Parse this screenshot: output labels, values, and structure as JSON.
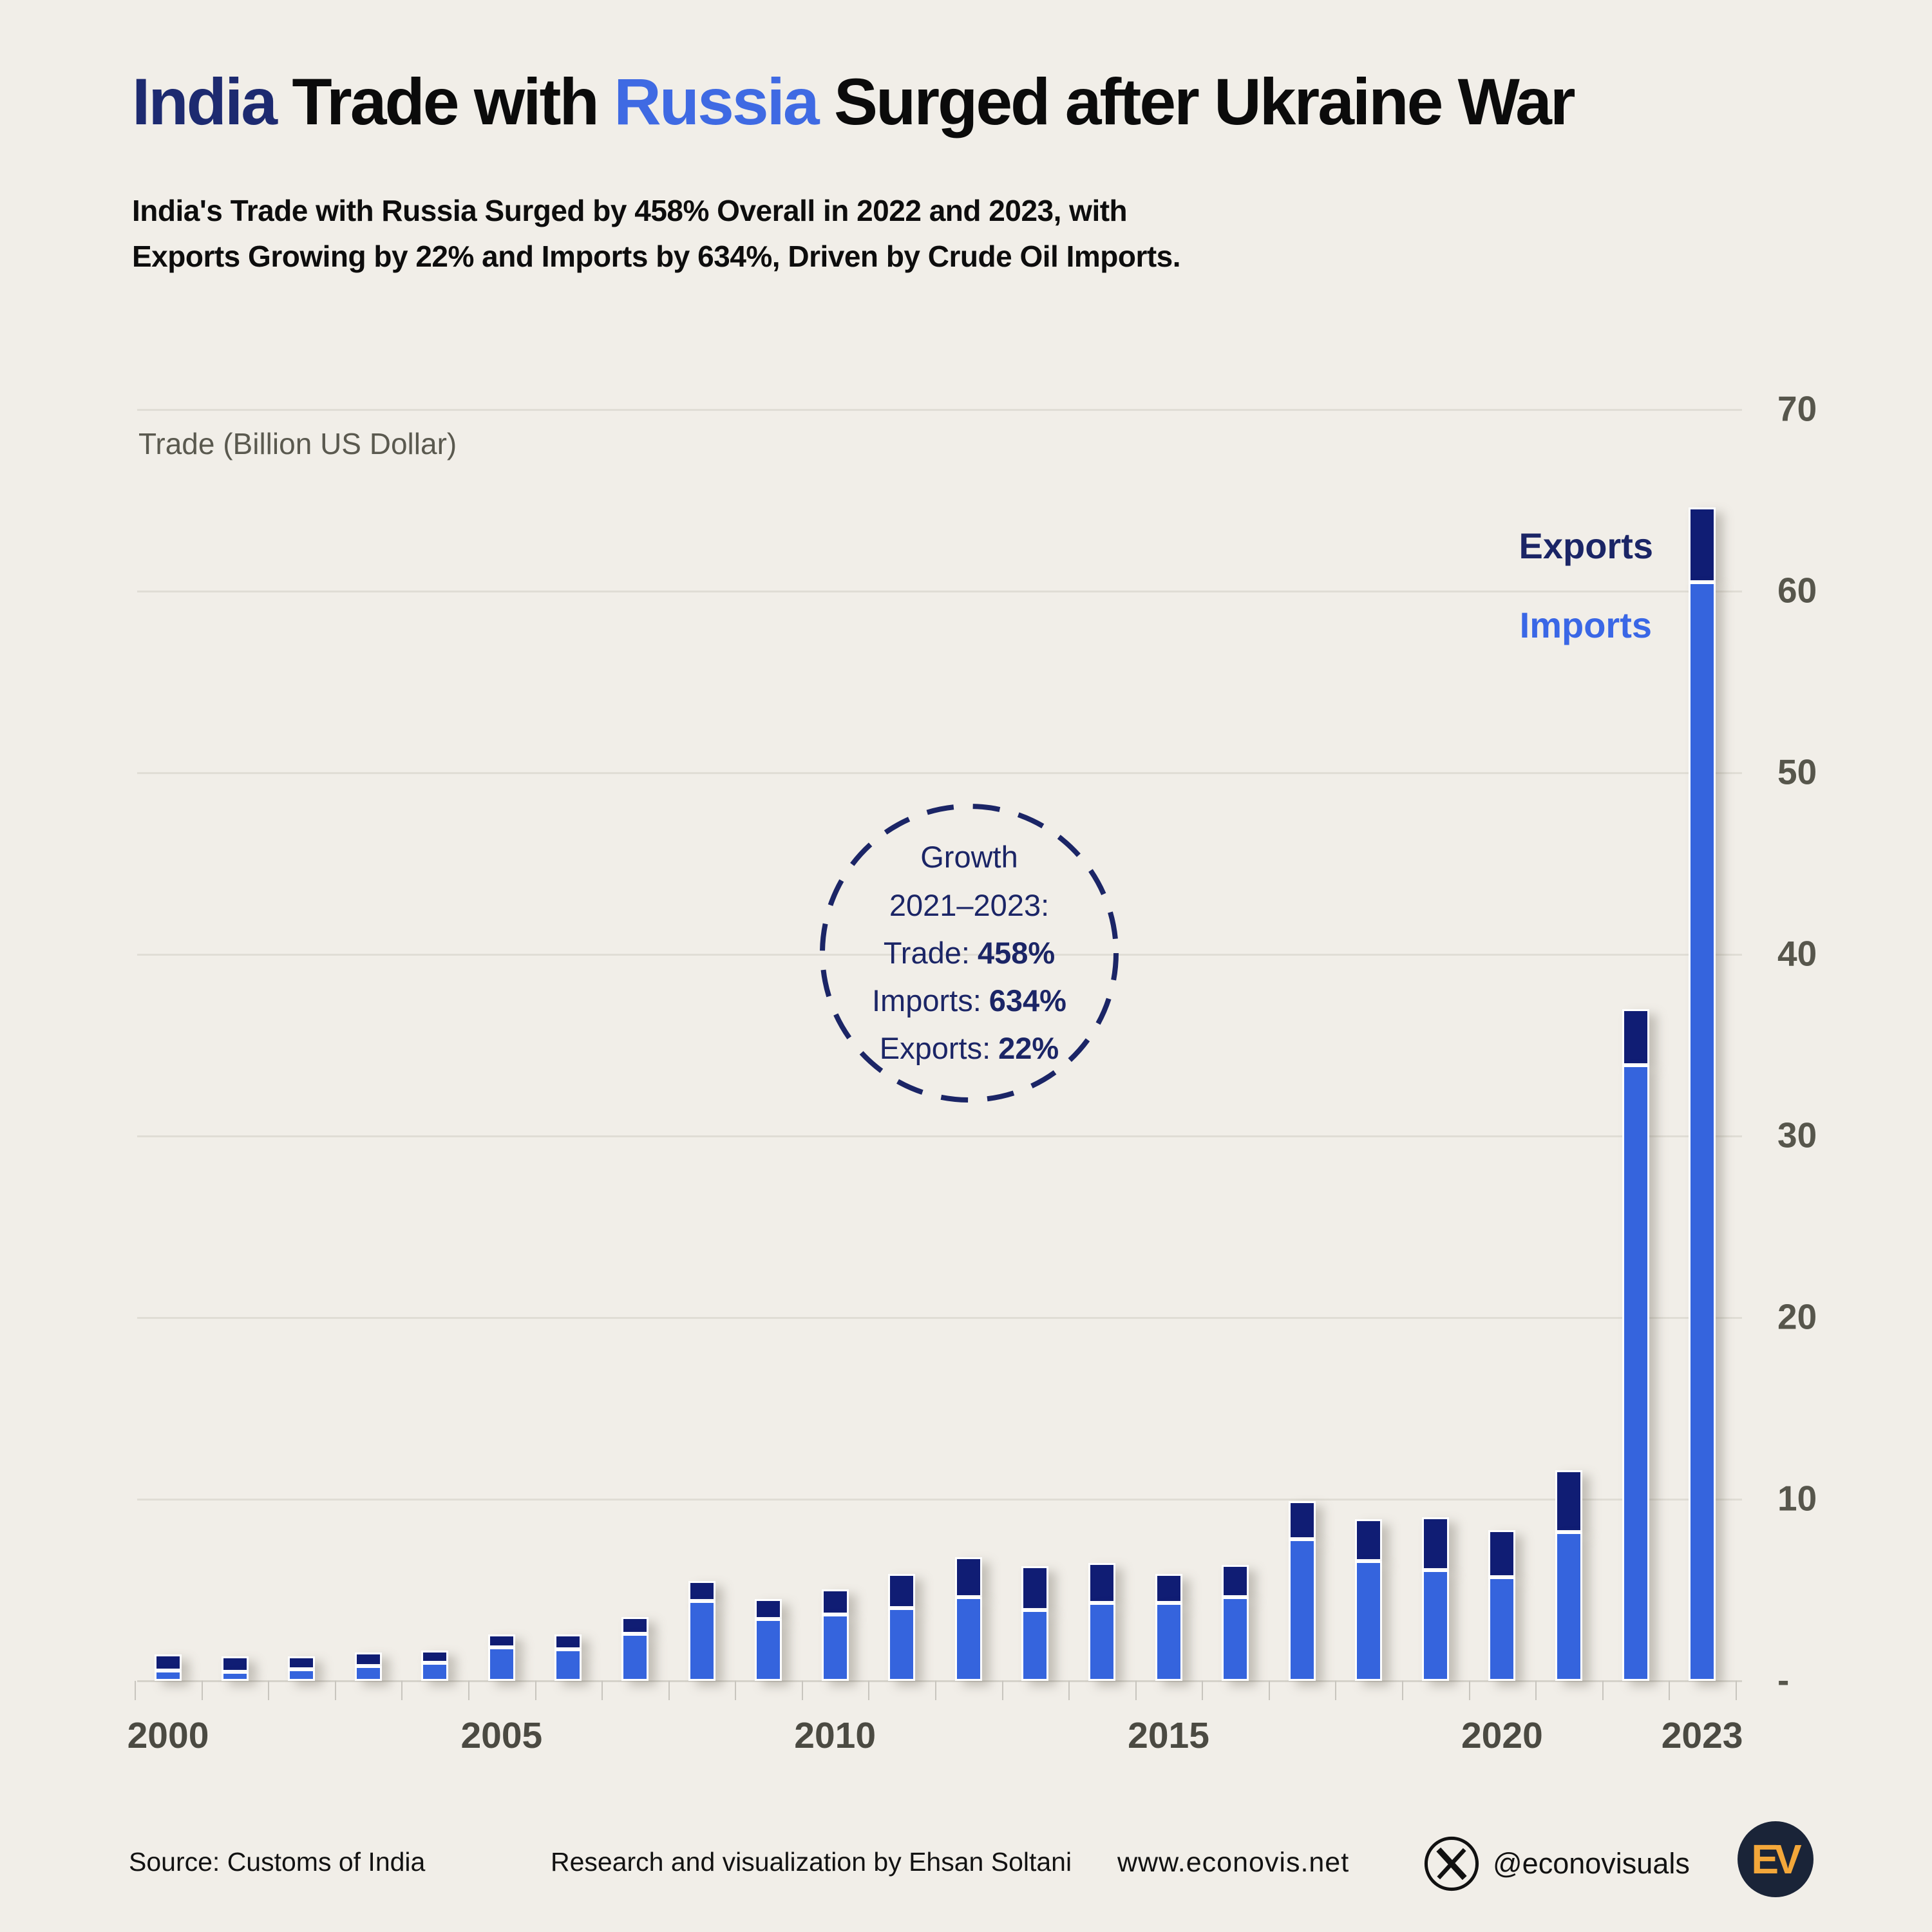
{
  "title": {
    "part1": "India",
    "part2": " Trade with ",
    "part3": "Russia",
    "part4": " Surged after Ukraine War"
  },
  "subtitle_lines": [
    "India's Trade with Russia Surged by 458% Overall in 2022 and 2023, with",
    "Exports Growing by 22% and Imports by 634%, Driven by Crude Oil Imports."
  ],
  "chart_data": {
    "type": "bar",
    "stacked": true,
    "axis_title": "Trade (Billion US Dollar)",
    "unit": "Billion US Dollar",
    "categories": [
      2000,
      2001,
      2002,
      2003,
      2004,
      2005,
      2006,
      2007,
      2008,
      2009,
      2010,
      2011,
      2012,
      2013,
      2014,
      2015,
      2016,
      2017,
      2018,
      2019,
      2020,
      2021,
      2022,
      2023
    ],
    "series": [
      {
        "name": "Imports",
        "color": "#3564dd",
        "values": [
          0.55,
          0.5,
          0.65,
          0.8,
          1.0,
          1.85,
          1.75,
          2.6,
          4.4,
          3.4,
          3.65,
          4.0,
          4.6,
          3.9,
          4.3,
          4.3,
          4.6,
          7.8,
          6.6,
          6.1,
          5.7,
          8.2,
          33.9,
          60.5
        ]
      },
      {
        "name": "Exports",
        "color": "#101d74",
        "values": [
          0.9,
          0.85,
          0.7,
          0.75,
          0.65,
          0.7,
          0.8,
          0.9,
          1.1,
          1.1,
          1.4,
          1.9,
          2.2,
          2.4,
          2.2,
          1.6,
          1.8,
          2.1,
          2.3,
          2.9,
          2.6,
          3.4,
          3.1,
          4.1
        ]
      }
    ],
    "ylim": [
      0,
      70
    ],
    "grid": "horizontal",
    "y_ticks": [
      {
        "value": 70,
        "label": "70"
      },
      {
        "value": 60,
        "label": "60"
      },
      {
        "value": 50,
        "label": "50"
      },
      {
        "value": 40,
        "label": "40"
      },
      {
        "value": 30,
        "label": "30"
      },
      {
        "value": 20,
        "label": "20"
      },
      {
        "value": 10,
        "label": "10"
      },
      {
        "value": 0,
        "label": "-"
      }
    ],
    "x_ticks": [
      {
        "value": 2000,
        "label": "2000"
      },
      {
        "value": 2005,
        "label": "2005"
      },
      {
        "value": 2010,
        "label": "2010"
      },
      {
        "value": 2015,
        "label": "2015"
      },
      {
        "value": 2020,
        "label": "2020"
      },
      {
        "value": 2023,
        "label": "2023"
      }
    ],
    "legend_position": "beside-last-bar"
  },
  "legend": {
    "exports": "Exports",
    "imports": "Imports"
  },
  "annotation": {
    "lines": [
      {
        "label": "Growth",
        "value": ""
      },
      {
        "label": "2021–2023:",
        "value": ""
      },
      {
        "label": "Trade:",
        "value": "458%"
      },
      {
        "label": "Imports:",
        "value": "634%"
      },
      {
        "label": "Exports:",
        "value": "22%"
      }
    ]
  },
  "footer": {
    "source": "Source: Customs of India",
    "credit": "Research and visualization by Ehsan Soltani",
    "website": "www.econovis.net",
    "social_handle": "@econovisuals",
    "logo_text": "EV"
  },
  "colors": {
    "background": "#f1eee8",
    "title_india": "#1d2a70",
    "title_russia": "#3f6ae3",
    "bar_imports": "#3564dd",
    "bar_exports": "#101d74",
    "legend_exports_text": "#1b2566",
    "legend_imports_text": "#3a67e6",
    "gridline": "#e0ddd5",
    "axis_text": "#57564c",
    "annotation_text": "#1b2566",
    "logo_bg": "#1a2438",
    "logo_text": "#f3a73a"
  }
}
